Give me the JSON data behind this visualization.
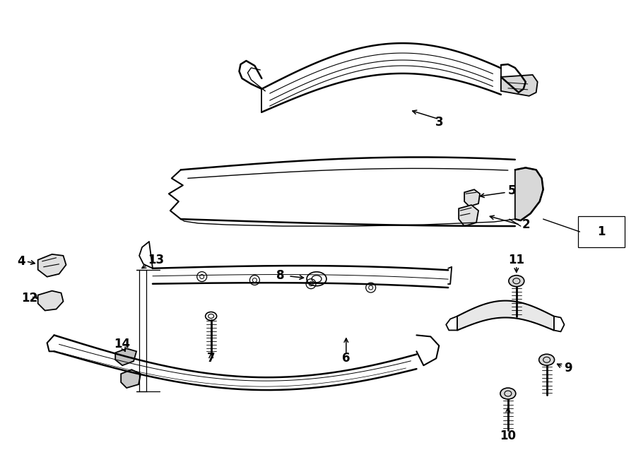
{
  "bg_color": "#ffffff",
  "line_color": "#000000",
  "lw": 1.3,
  "fig_width": 9.0,
  "fig_height": 6.61
}
